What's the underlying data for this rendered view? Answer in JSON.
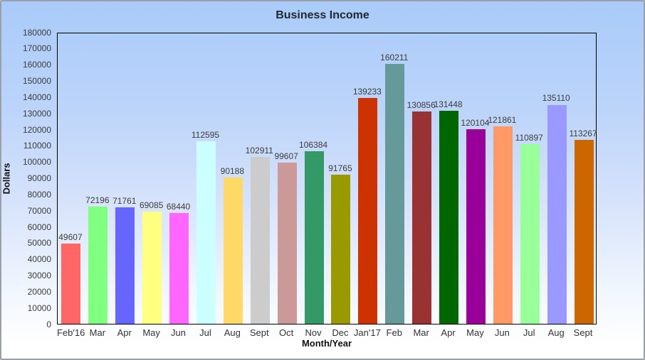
{
  "window": {
    "border_color": "#9aa0a8",
    "background_gradient_top": "#a9cbf9",
    "background_gradient_bottom": "#ffffff",
    "plot_border_color": "#000000"
  },
  "chart_data": {
    "type": "bar",
    "title": "Business Income",
    "xlabel": "Month/Year",
    "ylabel": "Dollars",
    "ylim": [
      0,
      180000
    ],
    "ytick_step": 10000,
    "grid": false,
    "legend": "none",
    "categories": [
      "Feb'16",
      "Mar",
      "Apr",
      "May",
      "Jun",
      "Jul",
      "Aug",
      "Sept",
      "Oct",
      "Nov",
      "Dec",
      "Jan'17",
      "Feb",
      "Mar",
      "Apr",
      "May",
      "Jun",
      "Jul",
      "Aug",
      "Sept"
    ],
    "values": [
      49607,
      72196,
      71761,
      69085,
      68440,
      112595,
      90188,
      102911,
      99607,
      106384,
      91765,
      139233,
      160211,
      130856,
      131448,
      120104,
      121861,
      110897,
      135110,
      113267
    ],
    "bar_colors": [
      "#ff6666",
      "#80ff80",
      "#6666ff",
      "#ffff80",
      "#ff66ff",
      "#ccffff",
      "#ffd966",
      "#cccccc",
      "#cc9999",
      "#339966",
      "#999900",
      "#cc3300",
      "#669999",
      "#993333",
      "#006600",
      "#990099",
      "#ff9966",
      "#99ff99",
      "#9999ff",
      "#cc6600"
    ]
  }
}
